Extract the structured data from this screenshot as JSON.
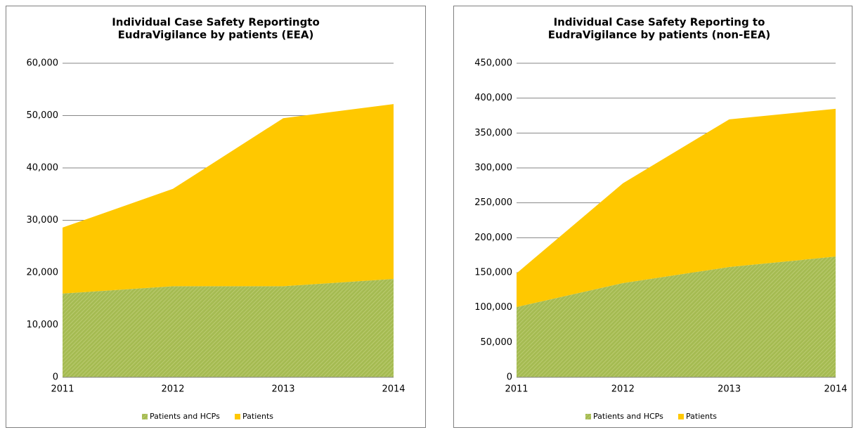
{
  "chart_data": [
    {
      "type": "stacked_area",
      "title": [
        "Individual Case Safety Reportingto",
        "EudraVigilance by patients (EEA)"
      ],
      "categories": [
        "2011",
        "2012",
        "2013",
        "2014"
      ],
      "series": [
        {
          "name": "Patients and HCPs",
          "color": "#9bbb59",
          "values": [
            16000,
            17400,
            17400,
            18800
          ]
        },
        {
          "name": "Patients",
          "color": "#ffc800",
          "values": [
            12600,
            18600,
            32100,
            33400
          ]
        }
      ],
      "ylim": [
        0,
        60000
      ],
      "yticks": [
        0,
        {
          "value": 10000,
          "label": "10,000"
        },
        {
          "value": 20000,
          "label": "20,000"
        },
        {
          "value": 30000,
          "label": "30,000"
        },
        {
          "value": 40000,
          "label": "40,000"
        },
        {
          "value": 50000,
          "label": "50,000"
        },
        {
          "value": 60000,
          "label": "60,000"
        }
      ],
      "grid": true,
      "legend": "bottom"
    },
    {
      "type": "stacked_area",
      "title": [
        "Individual Case Safety Reporting to",
        "EudraVigilance by patients (non-EEA)"
      ],
      "categories": [
        "2011",
        "2012",
        "2013",
        "2014"
      ],
      "series": [
        {
          "name": "Patients and HCPs",
          "color": "#9bbb59",
          "values": [
            100700,
            135000,
            158000,
            173000
          ]
        },
        {
          "name": "Patients",
          "color": "#ffc800",
          "values": [
            48300,
            143000,
            211600,
            211700
          ]
        }
      ],
      "ylim": [
        0,
        450000
      ],
      "yticks": [
        0,
        {
          "value": 50000,
          "label": "50,000"
        },
        {
          "value": 100000,
          "label": "100,000"
        },
        {
          "value": 150000,
          "label": "150,000"
        },
        {
          "value": 200000,
          "label": "200,000"
        },
        {
          "value": 250000,
          "label": "250,000"
        },
        {
          "value": 300000,
          "label": "300,000"
        },
        {
          "value": 350000,
          "label": "350,000"
        },
        {
          "value": 400000,
          "label": "400,000"
        },
        {
          "value": 450000,
          "label": "450,000"
        }
      ],
      "grid": true,
      "legend": "bottom"
    }
  ]
}
